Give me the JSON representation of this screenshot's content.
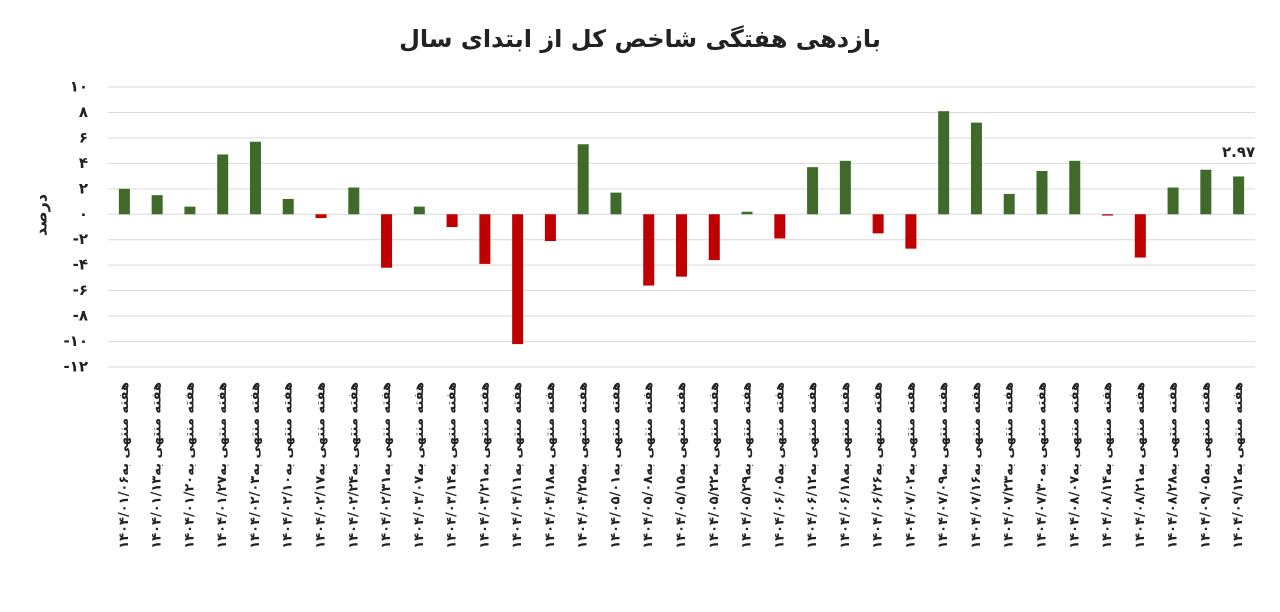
{
  "chart_data": {
    "type": "bar",
    "title": "بازدهی هفتگی شاخص کل از ابتدای سال",
    "y_label": "درصد",
    "categories": [
      "هفته منتهی به۱۴۰۴/۰۱/۰۶",
      "هفته منتهی به۱۴۰۴/۰۱/۱۳",
      "هفته منتهی به۱۴۰۴/۰۱/۲۰",
      "هفته منتهی به۱۴۰۴/۰۱/۲۷",
      "هفته منتهی به۱۴۰۴/۰۲/۰۳",
      "هفته منتهی به۱۴۰۴/۰۲/۱۰",
      "هفته منتهی به۱۴۰۴/۰۲/۱۷",
      "هفته منتهی به۱۴۰۴/۰۲/۲۴",
      "هفته منتهی به۱۴۰۴/۰۲/۳۱",
      "هفته منتهی به۱۴۰۴/۰۳/۰۷",
      "هفته منتهی به۱۴۰۴/۰۳/۱۴",
      "هفته منتهی به۱۴۰۴/۰۳/۲۱",
      "هفته منتهی به۱۴۰۴/۰۴/۱۱",
      "هفته منتهی به۱۴۰۴/۰۴/۱۸",
      "هفته منتهی به۱۴۰۴/۰۴/۲۵",
      "هفته منتهی به۱۴۰۴/۰۵/۰۱",
      "هفته منتهی به۱۴۰۴/۰۵/۰۸",
      "هفته منتهی به۱۴۰۴/۰۵/۱۵",
      "هفته منتهی به۱۴۰۴/۰۵/۲۲",
      "هفته منتهی به۱۴۰۴/۰۵/۲۹",
      "هفته منتهی به۱۴۰۴/۰۶/۰۵",
      "هفته منتهی به۱۴۰۴/۰۶/۱۲",
      "هفته منتهی به۱۴۰۴/۰۶/۱۸",
      "هفته منتهی به۱۴۰۴/۰۶/۲۶",
      "هفته منتهی به۱۴۰۴/۰۷/۰۲",
      "هفته منتهی به۱۴۰۴/۰۷/۰۹",
      "هفته منتهی به۱۴۰۴/۰۷/۱۶",
      "هفته منتهی به۱۴۰۴/۰۷/۲۳",
      "هفته منتهی به۱۴۰۴/۰۷/۳۰",
      "هفته منتهی به۱۴۰۴/۰۸/۰۷",
      "هفته منتهی به۱۴۰۴/۰۸/۱۴",
      "هفته منتهی به۱۴۰۴/۰۸/۲۱",
      "هفته منتهی به۱۴۰۴/۰۸/۲۸",
      "هفته منتهی به۱۴۰۴/۰۹/۰۵",
      "هفته منتهی به۱۴۰۴/۰۹/۱۲"
    ],
    "values": [
      2.0,
      1.5,
      0.6,
      4.7,
      5.7,
      1.2,
      -0.3,
      2.1,
      -4.2,
      0.6,
      -1.0,
      -3.9,
      -10.2,
      -2.1,
      5.5,
      1.7,
      -5.6,
      -4.9,
      -3.6,
      0.2,
      -1.9,
      3.7,
      4.2,
      -1.5,
      -2.7,
      8.1,
      7.2,
      1.6,
      3.4,
      4.2,
      -0.1,
      -3.4,
      2.1,
      3.5,
      2.97
    ],
    "value_labels": [
      null,
      null,
      null,
      null,
      null,
      null,
      null,
      null,
      null,
      null,
      null,
      null,
      null,
      null,
      null,
      null,
      null,
      null,
      null,
      null,
      null,
      null,
      null,
      null,
      null,
      null,
      null,
      null,
      null,
      null,
      null,
      null,
      null,
      null,
      "۲.۹۷"
    ],
    "positive_color": "#3f6a2a",
    "negative_color": "#c00000",
    "ylim": [
      -12,
      10
    ],
    "yticks": [
      {
        "value": -12,
        "label": "-۱۲"
      },
      {
        "value": -10,
        "label": "-۱۰"
      },
      {
        "value": -8,
        "label": "-۸"
      },
      {
        "value": -6,
        "label": "-۶"
      },
      {
        "value": -4,
        "label": "-۴"
      },
      {
        "value": -2,
        "label": "-۲"
      },
      {
        "value": 0,
        "label": "۰"
      },
      {
        "value": 2,
        "label": "۲"
      },
      {
        "value": 4,
        "label": "۴"
      },
      {
        "value": 6,
        "label": "۶"
      },
      {
        "value": 8,
        "label": "۸"
      },
      {
        "value": 10,
        "label": "۱۰"
      }
    ],
    "grid": true
  }
}
